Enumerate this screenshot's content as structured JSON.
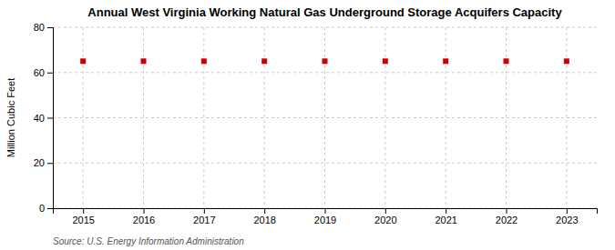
{
  "chart_data": {
    "type": "scatter",
    "title": "Annual West Virginia Working Natural Gas Underground Storage Acquifers Capacity",
    "ylabel": "Million Cubic Feet",
    "source": "Source: U.S. Energy Information Administration",
    "x": [
      2015,
      2016,
      2017,
      2018,
      2019,
      2020,
      2021,
      2022,
      2023
    ],
    "values": [
      65,
      65,
      65,
      65,
      65,
      65,
      65,
      65,
      65
    ],
    "color": "#cc0000",
    "marker": "square",
    "xlim": [
      2014.5,
      2023.5
    ],
    "xticks": [
      2015,
      2016,
      2017,
      2018,
      2019,
      2020,
      2021,
      2022,
      2023
    ],
    "ylim": [
      0,
      80
    ],
    "yticks": [
      0,
      20,
      40,
      60,
      80
    ],
    "grid": true
  }
}
